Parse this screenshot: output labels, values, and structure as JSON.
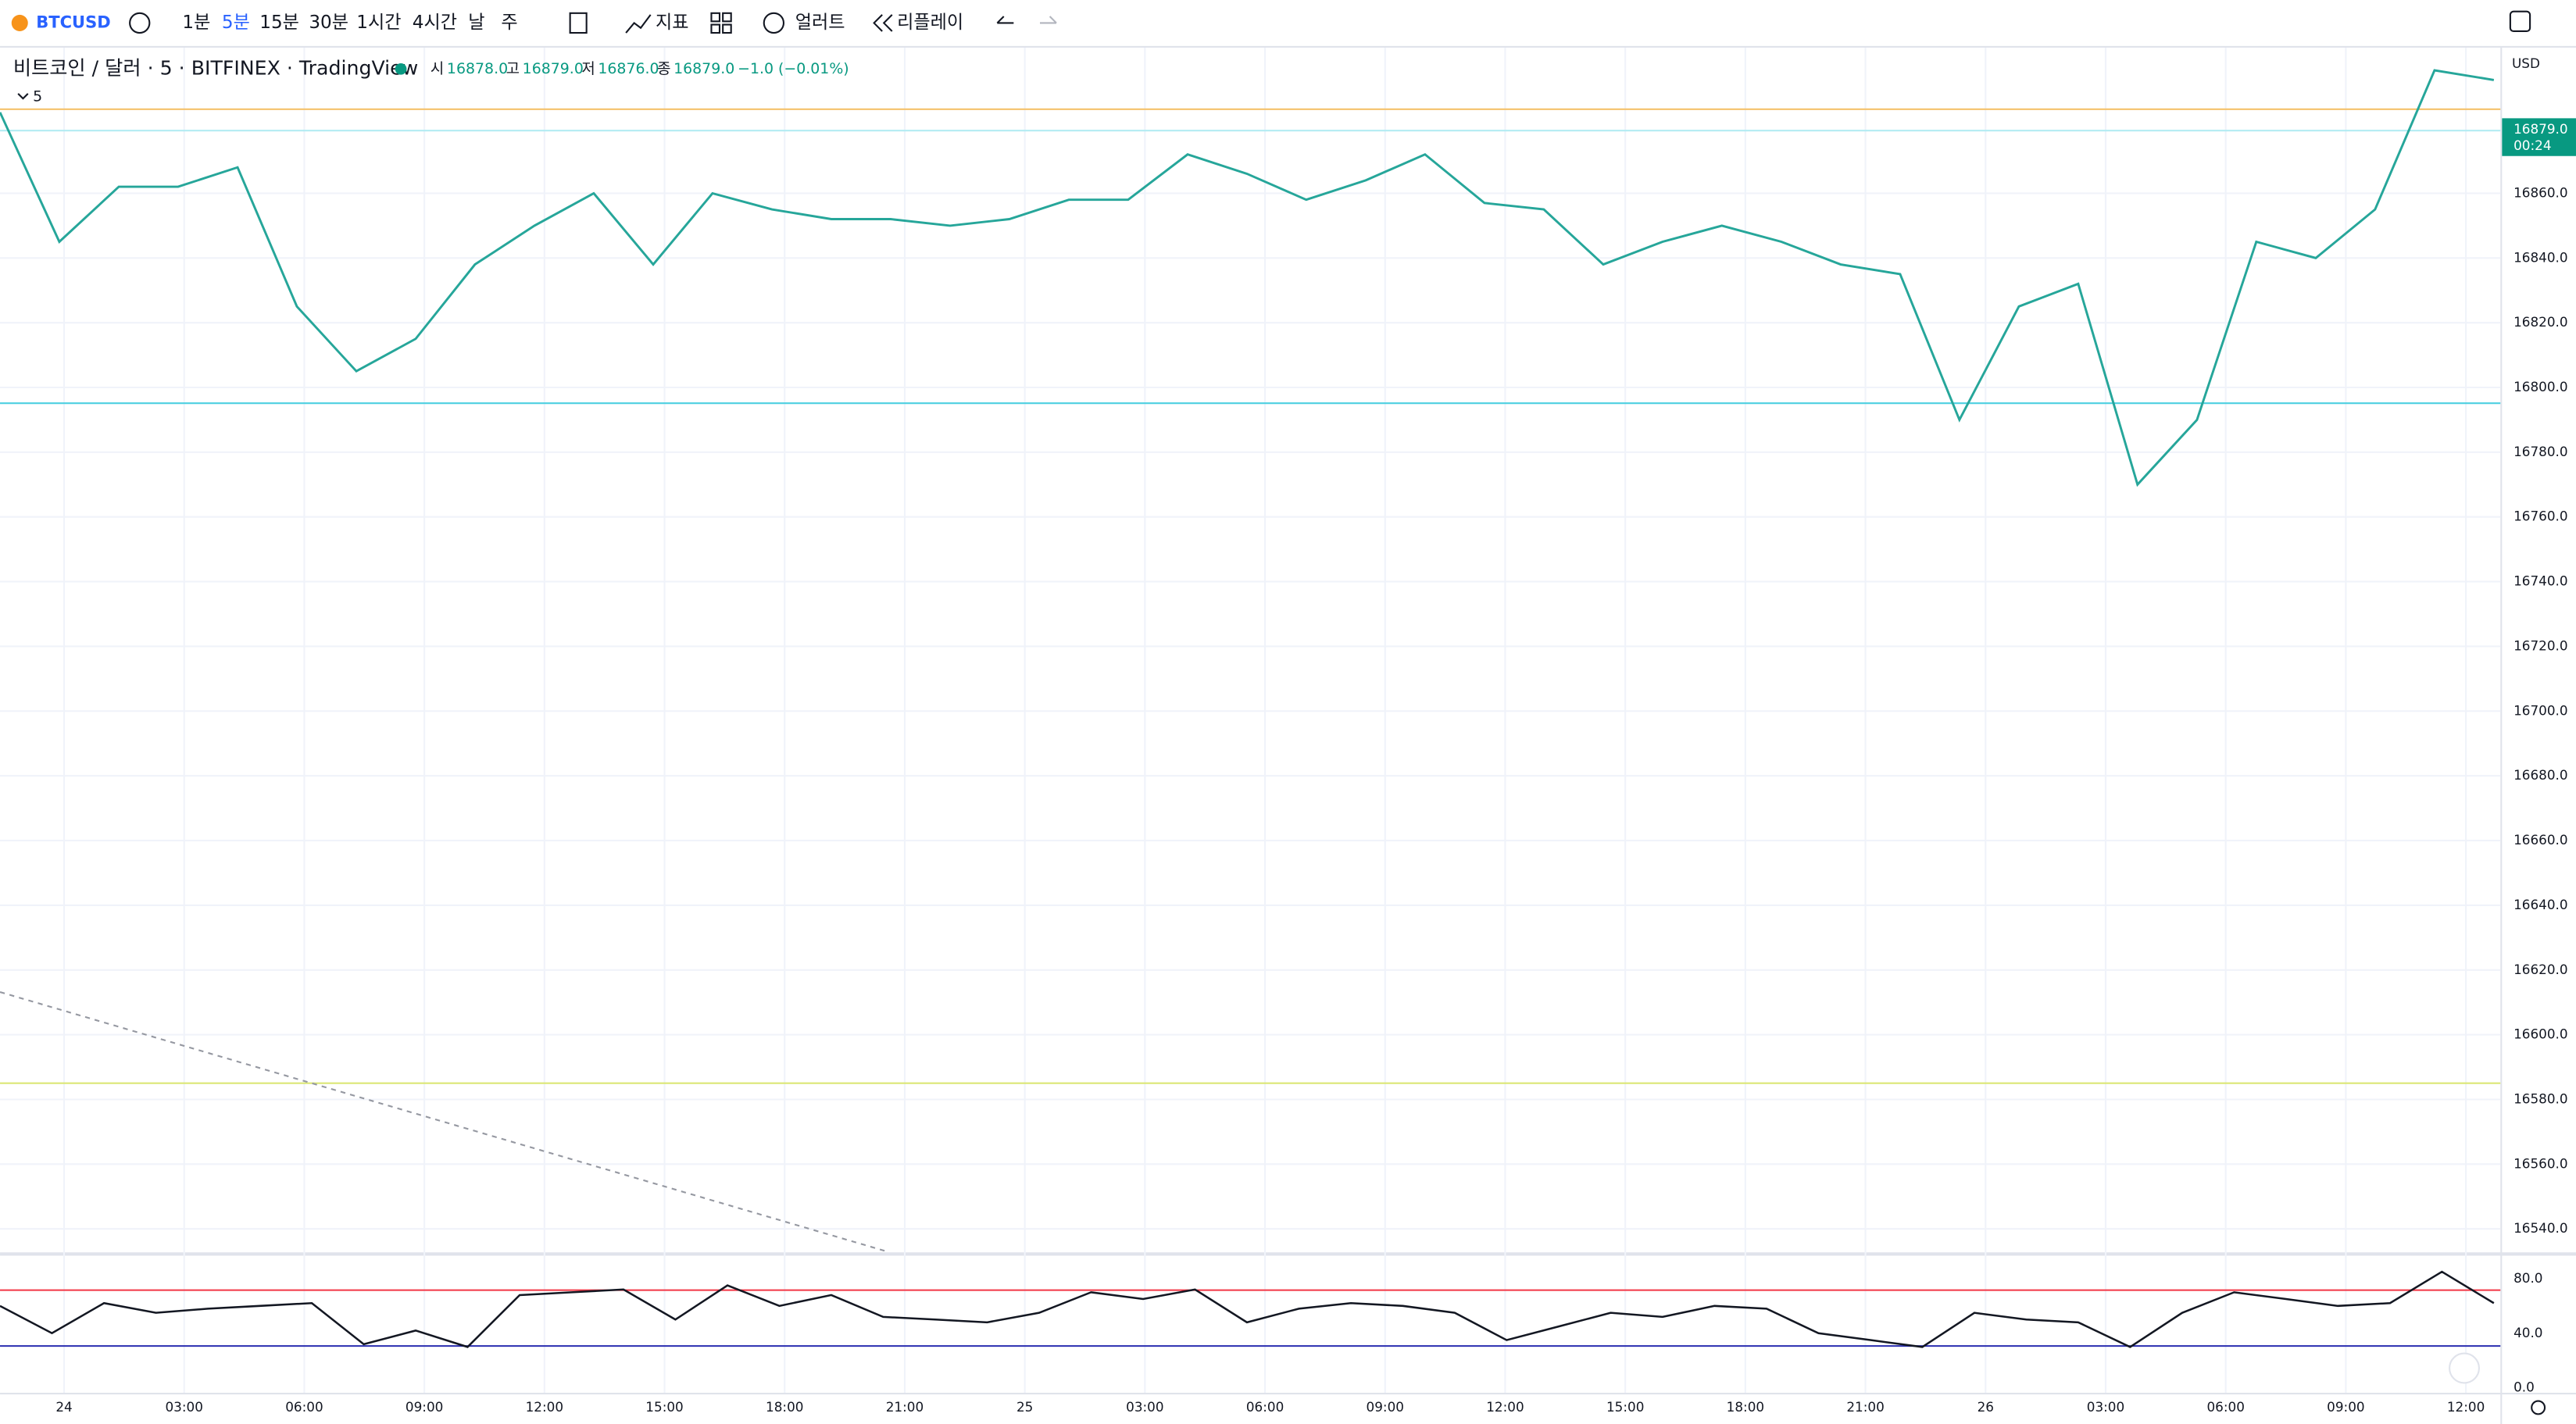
{
  "toolbar": {
    "symbol": "BTCUSD",
    "intervals": [
      "1분",
      "5분",
      "15분",
      "30분",
      "1시간",
      "4시간",
      "날",
      "주"
    ],
    "active_interval": 1,
    "indicators": "지표",
    "alerts": "얼러트",
    "replay": "리플레이"
  },
  "legend": {
    "title": "비트코인 / 달러 · 5 · BITFINEX · TradingView",
    "ohlc": [
      {
        "label": "시",
        "value": "16878.0"
      },
      {
        "label": "고",
        "value": "16879.0"
      },
      {
        "label": "저",
        "value": "16876.0"
      },
      {
        "label": "종",
        "value": "16879.0"
      }
    ],
    "change": "−1.0 (−0.01%)",
    "indicator": "5"
  },
  "price_axis": {
    "currency": "USD",
    "ylim": [
      16533,
      16905
    ],
    "yticks": [
      {
        "value": 16540,
        "label": "16540.0"
      },
      {
        "value": 16560,
        "label": "16560.0"
      },
      {
        "value": 16580,
        "label": "16580.0"
      },
      {
        "value": 16600,
        "label": "16600.0"
      },
      {
        "value": 16620,
        "label": "16620.0"
      },
      {
        "value": 16640,
        "label": "16640.0"
      },
      {
        "value": 16660,
        "label": "16660.0"
      },
      {
        "value": 16680,
        "label": "16680.0"
      },
      {
        "value": 16700,
        "label": "16700.0"
      },
      {
        "value": 16720,
        "label": "16720.0"
      },
      {
        "value": 16740,
        "label": "16740.0"
      },
      {
        "value": 16760,
        "label": "16760.0"
      },
      {
        "value": 16780,
        "label": "16780.0"
      },
      {
        "value": 16800,
        "label": "16800.0"
      },
      {
        "value": 16820,
        "label": "16820.0"
      },
      {
        "value": 16840,
        "label": "16840.0"
      },
      {
        "value": 16860,
        "label": "16860.0"
      }
    ],
    "last_price": {
      "label": "16879.0",
      "countdown": "00:24"
    }
  },
  "time_axis": {
    "labels": [
      "24",
      "03:00",
      "06:00",
      "09:00",
      "12:00",
      "15:00",
      "18:00",
      "21:00",
      "25",
      "03:00",
      "06:00",
      "09:00",
      "12:00",
      "15:00",
      "18:00",
      "21:00",
      "26",
      "03:00",
      "06:00",
      "09:00",
      "12:00"
    ]
  },
  "close": {
    "color": "#26a69a",
    "values": [
      16885,
      16845,
      16862,
      16862,
      16868,
      16825,
      16805,
      16815,
      16838,
      16850,
      16860,
      16838,
      16860,
      16855,
      16852,
      16852,
      16850,
      16852,
      16858,
      16858,
      16872,
      16866,
      16858,
      16864,
      16872,
      16857,
      16855,
      16838,
      16845,
      16850,
      16845,
      16838,
      16835,
      16790,
      16825,
      16832,
      16770,
      16790,
      16845,
      16840,
      16855,
      16898,
      16895
    ]
  },
  "rsi": {
    "color": "#131722",
    "ylim": [
      0,
      95
    ],
    "yticks": [
      {
        "value": 0,
        "label": "0.0"
      },
      {
        "value": 40,
        "label": "40.0"
      },
      {
        "value": 80,
        "label": "80.0"
      }
    ],
    "values": [
      60,
      40,
      62,
      55,
      58,
      60,
      62,
      32,
      42,
      30,
      68,
      70,
      72,
      50,
      75,
      60,
      68,
      52,
      50,
      48,
      55,
      70,
      65,
      72,
      48,
      58,
      62,
      60,
      55,
      35,
      45,
      55,
      52,
      60,
      58,
      40,
      35,
      30,
      55,
      50,
      48,
      30,
      55,
      70,
      65,
      60,
      62,
      85,
      62
    ]
  }
}
